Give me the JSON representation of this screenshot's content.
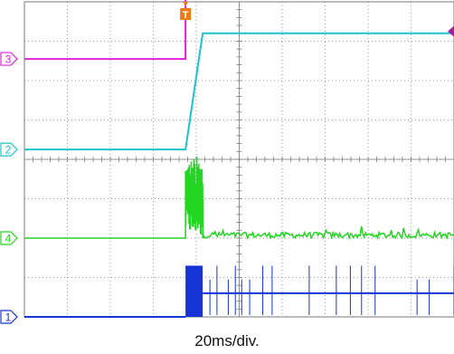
{
  "colors": {
    "ch1": "#1533d6",
    "ch2": "#17c4d0",
    "ch3": "#e020e0",
    "ch4": "#22d622",
    "trigger_marker": "#f07a10",
    "level_marker": "#a020a0",
    "grid": "#7a7a7a"
  },
  "chart_data": {
    "type": "line",
    "title": "",
    "xlabel": "",
    "ylabel": "",
    "timebase_label": "20ms/div.",
    "trigger_label": "T",
    "grid": {
      "x_divisions": 10,
      "y_divisions": 8
    },
    "xlim": [
      0,
      10
    ],
    "ylim": [
      0,
      8
    ],
    "channel_markers": [
      {
        "label": "3",
        "channel": "ch3",
        "y": 6.55
      },
      {
        "label": "2",
        "channel": "ch2",
        "y": 4.25
      },
      {
        "label": "4",
        "channel": "ch4",
        "y": 2.0
      },
      {
        "label": "1",
        "channel": "ch1",
        "y": 0.0
      }
    ],
    "trigger_x": 3.75,
    "series": [
      {
        "channel": "ch3",
        "type": "step",
        "low": 6.55,
        "high": 8.75,
        "t_step": 3.75
      },
      {
        "channel": "ch2",
        "type": "ramp",
        "low": 4.25,
        "high": 7.2,
        "t_start": 3.75,
        "t_end": 4.15
      },
      {
        "channel": "ch4",
        "type": "burst",
        "base": 2.0,
        "burst_start": 3.75,
        "burst_end": 4.15,
        "burst_max": 4.1,
        "after_noise": 0.15,
        "spikes": 0.3
      },
      {
        "channel": "ch1",
        "type": "pulses",
        "base": 0.0,
        "active_start": 3.75,
        "block_end": 4.15,
        "block_high": 1.3,
        "active_level": 0.6,
        "pulse_high": 1.3
      }
    ]
  }
}
